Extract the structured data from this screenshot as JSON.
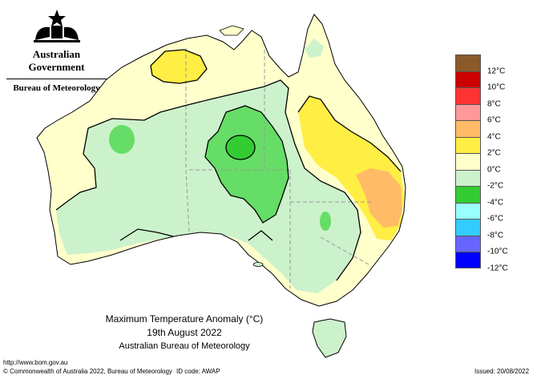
{
  "logo": {
    "government": "Australian Government",
    "bureau": "Bureau of Meteorology",
    "emblem_icon": "coat-of-arms-icon"
  },
  "caption": {
    "title": "Maximum Temperature Anomaly (°C)",
    "date": "19th August 2022",
    "source": "Australian Bureau of Meteorology"
  },
  "footer": {
    "url": "http://www.bom.gov.au",
    "copyright": "© Commonwealth of Australia 2022, Bureau of Meteorology",
    "id_code": "ID code: AWAP",
    "issued": "Issued: 20/08/2022"
  },
  "legend": {
    "colors": [
      "#8b5a2b",
      "#cc0000",
      "#ff3333",
      "#ff9999",
      "#ffbb66",
      "#ffee44",
      "#ffffcc",
      "#ccf2cc",
      "#33cc33",
      "#99ffff",
      "#33ccff",
      "#6666ff",
      "#0000ff"
    ],
    "labels": [
      "12°C",
      "10°C",
      "8°C",
      "6°C",
      "4°C",
      "2°C",
      "0°C",
      "-2°C",
      "-4°C",
      "-6°C",
      "-8°C",
      "-10°C",
      "-12°C"
    ]
  },
  "palette": {
    "light_yellow": "#ffffcc",
    "light_green": "#ccf2cc",
    "mid_green": "#99e699",
    "green": "#66dd66",
    "dark_green": "#33cc33",
    "yellow": "#ffee44",
    "orange": "#ffbb66",
    "ocean": "#ffffff",
    "state_border": "#999999",
    "contour": "#000000"
  }
}
